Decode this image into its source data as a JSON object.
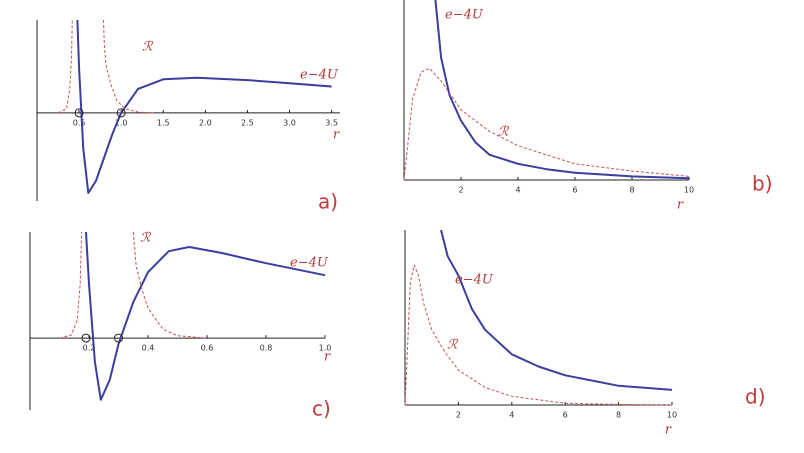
{
  "chart_data": [
    {
      "type": "line",
      "annotation": "a)",
      "x_label": "r",
      "xlim": [
        0,
        3.6
      ],
      "ylim": [
        -1.1,
        1.16
      ],
      "xticks": [
        {
          "value": 0.5,
          "label": "0.5"
        },
        {
          "value": 1,
          "label": "1.0"
        },
        1.5,
        {
          "value": 2,
          "label": "2.0"
        },
        2.5,
        {
          "value": 3,
          "label": "3.0"
        },
        3.5
      ],
      "markers": {
        "x": [
          0.5,
          1.0
        ],
        "y": [
          0,
          0
        ]
      },
      "series": [
        {
          "name": "e−4U",
          "color": "#3d3d9e",
          "style": "solid",
          "x": [
            0.48,
            0.5,
            0.55,
            0.61,
            0.7,
            0.8,
            0.9,
            1.0,
            1.2,
            1.5,
            1.9,
            2.5,
            3.0,
            3.5
          ],
          "values": [
            1.16,
            0.55,
            -0.45,
            -1.0,
            -0.85,
            -0.55,
            -0.25,
            0,
            0.3,
            0.42,
            0.44,
            0.41,
            0.37,
            0.33
          ]
        },
        {
          "name": "ℛ",
          "color": "#c8545a",
          "style": "dashed",
          "x": [
            0.25,
            0.35,
            0.39,
            0.41,
            0.42,
            null,
            0.79,
            0.8,
            0.82,
            0.88,
            0.95,
            1.05,
            1.2,
            1.4
          ],
          "values": [
            0,
            0.05,
            0.3,
            0.7,
            1.16,
            null,
            1.16,
            0.85,
            0.6,
            0.35,
            0.15,
            0.05,
            0.01,
            0
          ]
        }
      ]
    },
    {
      "type": "line",
      "annotation": "b)",
      "x_label": "r",
      "xlim": [
        0,
        10
      ],
      "ylim": [
        0,
        1
      ],
      "xticks": [
        2,
        4,
        6,
        8,
        10
      ],
      "series": [
        {
          "name": "e−4U",
          "color": "#3d3d9e",
          "style": "solid",
          "x": [
            1.1,
            1.3,
            1.6,
            2,
            2.5,
            3,
            4,
            5,
            6,
            8,
            10
          ],
          "values": [
            1,
            0.68,
            0.47,
            0.33,
            0.21,
            0.14,
            0.09,
            0.06,
            0.04,
            0.02,
            0.01
          ]
        },
        {
          "name": "ℛ",
          "color": "#c8545a",
          "style": "dashed",
          "x": [
            0,
            0.1,
            0.3,
            0.6,
            0.9,
            1.3,
            2,
            3,
            4,
            6,
            8,
            10
          ],
          "values": [
            0,
            0.15,
            0.45,
            0.6,
            0.62,
            0.55,
            0.39,
            0.27,
            0.19,
            0.09,
            0.05,
            0.02
          ]
        }
      ]
    },
    {
      "type": "line",
      "annotation": "c)",
      "x_label": "r",
      "xlim": [
        0,
        1
      ],
      "ylim": [
        -1.2,
        1.77
      ],
      "xticks": [
        0.2,
        0.4,
        0.6,
        0.8,
        {
          "value": 1,
          "label": "1.0"
        }
      ],
      "markers": {
        "x": [
          0.19,
          0.3
        ],
        "y": [
          0,
          0
        ]
      },
      "series": [
        {
          "name": "e−4U",
          "color": "#3d3d9e",
          "style": "solid",
          "x": [
            0.19,
            0.2,
            0.22,
            0.24,
            0.27,
            0.3,
            0.35,
            0.4,
            0.47,
            0.54,
            0.65,
            0.8,
            1.0
          ],
          "values": [
            1.77,
            0.9,
            -0.4,
            -1.03,
            -0.7,
            -0.1,
            0.6,
            1.1,
            1.45,
            1.52,
            1.42,
            1.25,
            1.05
          ]
        },
        {
          "name": "ℛ",
          "color": "#c8545a",
          "style": "dashed",
          "x": [
            0.1,
            0.14,
            0.16,
            0.17,
            0.175,
            null,
            0.35,
            0.36,
            0.38,
            0.4,
            0.45,
            0.5,
            0.6
          ],
          "values": [
            0,
            0.05,
            0.3,
            0.9,
            1.77,
            null,
            1.77,
            1.2,
            0.8,
            0.5,
            0.15,
            0.04,
            0
          ]
        }
      ]
    },
    {
      "type": "line",
      "annotation": "d)",
      "x_label": "r",
      "xlim": [
        0,
        10
      ],
      "ylim": [
        0,
        1
      ],
      "xticks": [
        2,
        4,
        6,
        8,
        10
      ],
      "series": [
        {
          "name": "e−4U",
          "color": "#3d3d9e",
          "style": "solid",
          "x": [
            1.35,
            1.6,
            2,
            2.5,
            3,
            4,
            5,
            6,
            8,
            10
          ],
          "values": [
            1,
            0.85,
            0.74,
            0.55,
            0.43,
            0.29,
            0.22,
            0.17,
            0.11,
            0.086
          ]
        },
        {
          "name": "ℛ",
          "color": "#c8545a",
          "style": "dashed",
          "x": [
            0,
            0.1,
            0.2,
            0.35,
            0.5,
            0.7,
            1,
            1.5,
            2,
            3,
            4,
            6,
            8,
            10
          ],
          "values": [
            0,
            0.35,
            0.7,
            0.8,
            0.74,
            0.58,
            0.43,
            0.3,
            0.2,
            0.1,
            0.05,
            0.01,
            0.003,
            0
          ]
        }
      ]
    }
  ]
}
